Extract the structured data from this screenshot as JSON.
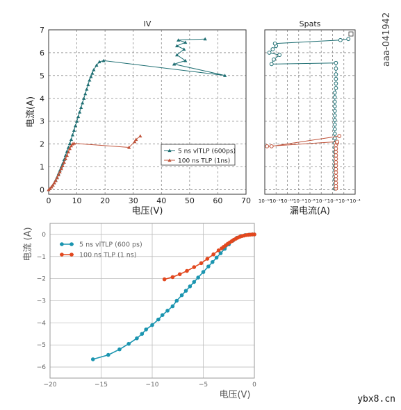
{
  "image_id_text": "aaa-041942",
  "watermark": "ybx8.cn",
  "colors": {
    "teal": "#1f6f73",
    "orange": "#c0533a",
    "teal2": "#1b95b0",
    "orange2": "#e2481f",
    "grid": "#9a9a9a"
  },
  "chart_data": [
    {
      "type": "line",
      "title": "IV",
      "xlabel": "电压(V)",
      "ylabel": "电流(A)",
      "xlim": [
        0,
        70
      ],
      "ylim": [
        -0.2,
        7
      ],
      "xticks": [
        0,
        10,
        20,
        30,
        40,
        50,
        60,
        70
      ],
      "yticks": [
        0,
        1,
        2,
        3,
        4,
        5,
        6,
        7
      ],
      "grid": true,
      "legend": "bottom-right",
      "series": [
        {
          "name": "5 ns vlTLP (600ps)",
          "color": "#1f6f73",
          "marker": "triangle",
          "x": [
            0,
            0.5,
            1,
            1.5,
            2,
            2.5,
            3,
            3.5,
            4,
            4.5,
            5,
            5.5,
            6,
            6.5,
            7,
            7.5,
            8,
            8.5,
            9,
            9.5,
            10,
            10.5,
            11,
            11.5,
            12,
            12.5,
            13,
            13.5,
            14,
            14.5,
            15,
            15.5,
            16,
            17,
            18,
            19.5,
            62.5,
            44.5,
            48.5,
            45.5,
            48.0,
            45.5,
            48.5,
            46.0,
            55.5
          ],
          "y": [
            0,
            0.05,
            0.12,
            0.2,
            0.3,
            0.42,
            0.55,
            0.7,
            0.85,
            1.0,
            1.15,
            1.32,
            1.5,
            1.68,
            1.85,
            2.02,
            2.2,
            2.4,
            2.6,
            2.8,
            3.0,
            3.2,
            3.4,
            3.6,
            3.8,
            4.0,
            4.2,
            4.4,
            4.6,
            4.8,
            4.95,
            5.1,
            5.25,
            5.45,
            5.6,
            5.65,
            5.0,
            5.5,
            5.65,
            5.9,
            6.15,
            6.3,
            6.45,
            6.55,
            6.6
          ]
        },
        {
          "name": "100 ns TLP (1ns)",
          "color": "#c0533a",
          "marker": "triangle",
          "x": [
            0,
            0.5,
            1,
            1.5,
            2,
            2.5,
            3,
            3.5,
            4,
            4.5,
            5,
            5.5,
            6,
            6.5,
            7,
            7.5,
            8,
            8.5,
            9,
            28.5,
            30.5,
            31,
            32.5
          ],
          "y": [
            0,
            0.05,
            0.12,
            0.2,
            0.3,
            0.4,
            0.52,
            0.65,
            0.78,
            0.92,
            1.05,
            1.2,
            1.35,
            1.5,
            1.65,
            1.8,
            1.92,
            2.0,
            2.03,
            1.85,
            2.1,
            2.2,
            2.35
          ]
        }
      ]
    },
    {
      "type": "scatter",
      "title": "Spats",
      "xlabel": "漏电流(A)",
      "xscale": "log",
      "xlim": [
        -12,
        -4
      ],
      "xticks": [
        "10⁻¹²",
        "10⁻¹¹",
        "10⁻¹⁰",
        "10⁻⁹",
        "10⁻⁸",
        "10⁻⁷",
        "10⁻⁶",
        "10⁻⁵",
        "10⁻⁴"
      ],
      "ylim": [
        -0.2,
        7
      ],
      "grid": true,
      "series": [
        {
          "name": "5 ns vlTLP (600ps)",
          "color": "#1f6f73",
          "marker": "circle",
          "x": [
            -5.8,
            -5.8,
            -5.8,
            -5.8,
            -5.8,
            -5.8,
            -5.8,
            -5.8,
            -5.8,
            -5.8,
            -5.8,
            -5.8,
            -5.8,
            -5.8,
            -5.8,
            -5.8,
            -5.8,
            -5.8,
            -5.8,
            -5.8,
            -5.8,
            -5.8,
            -5.7,
            -5.7,
            -5.7,
            -5.7,
            -5.7,
            -5.7,
            -11.4,
            -11.2,
            -10.7,
            -11.6,
            -11.3,
            -11.0,
            -11.1,
            -5.3,
            -4.6
          ],
          "y": [
            0.05,
            0.25,
            0.45,
            0.65,
            0.85,
            1.05,
            1.25,
            1.45,
            1.65,
            1.85,
            2.05,
            2.25,
            2.45,
            2.65,
            2.85,
            3.05,
            3.25,
            3.45,
            3.65,
            3.85,
            4.05,
            4.25,
            4.45,
            4.65,
            4.85,
            5.05,
            5.3,
            5.55,
            5.5,
            5.7,
            5.9,
            6.0,
            6.15,
            6.3,
            6.4,
            6.55,
            6.6
          ]
        },
        {
          "name": "100 ns TLP (1ns)",
          "color": "#c0533a",
          "marker": "circle",
          "x": [
            -5.7,
            -5.7,
            -5.7,
            -5.7,
            -5.7,
            -5.7,
            -5.7,
            -5.7,
            -5.7,
            -5.7,
            -5.7,
            -5.7,
            -5.7,
            -5.7,
            -5.6,
            -5.6,
            -11.8,
            -11.4,
            -5.4
          ],
          "y": [
            0.05,
            0.15,
            0.3,
            0.45,
            0.6,
            0.75,
            0.9,
            1.05,
            1.2,
            1.35,
            1.5,
            1.65,
            1.8,
            1.95,
            2.05,
            2.1,
            1.9,
            1.9,
            2.35
          ]
        }
      ]
    },
    {
      "type": "line",
      "title": "",
      "xlabel": "电压(V)",
      "ylabel": "电流 (A)",
      "xlim": [
        -20,
        0
      ],
      "ylim": [
        -6.5,
        0.5
      ],
      "xticks": [
        -20,
        -15,
        -10,
        -5,
        0
      ],
      "yticks": [
        -6,
        -5,
        -4,
        -3,
        -2,
        -1,
        0
      ],
      "grid": true,
      "legend": "top-left",
      "series": [
        {
          "name": "5 ns vlTLP (600 ps)",
          "color": "#1b95b0",
          "marker": "circle",
          "x": [
            -15.8,
            -14.3,
            -13.2,
            -12.3,
            -11.5,
            -11.0,
            -10.6,
            -10.0,
            -9.4,
            -9.0,
            -8.5,
            -8.0,
            -7.6,
            -7.1,
            -6.7,
            -6.3,
            -5.9,
            -5.5,
            -5.0,
            -4.5,
            -4.1,
            -3.7,
            -3.3,
            -2.9,
            -2.5,
            -2.1,
            -1.7,
            -1.3,
            -0.9,
            -0.5,
            -0.2,
            0
          ],
          "y": [
            -5.65,
            -5.45,
            -5.2,
            -4.95,
            -4.7,
            -4.5,
            -4.3,
            -4.1,
            -3.85,
            -3.65,
            -3.45,
            -3.25,
            -3.0,
            -2.75,
            -2.55,
            -2.35,
            -2.15,
            -1.95,
            -1.7,
            -1.45,
            -1.25,
            -1.05,
            -0.85,
            -0.65,
            -0.45,
            -0.28,
            -0.15,
            -0.07,
            -0.03,
            -0.01,
            0,
            0
          ]
        },
        {
          "name": "100 ns TLP (1 ns)",
          "color": "#e2481f",
          "marker": "circle",
          "x": [
            -8.8,
            -8.0,
            -7.3,
            -6.6,
            -5.9,
            -5.2,
            -4.6,
            -4.0,
            -3.5,
            -3.2,
            -3.0,
            -2.8,
            -2.6,
            -2.4,
            -2.2,
            -2.0,
            -1.8,
            -1.6,
            -1.4,
            -1.2,
            -1.0,
            -0.8,
            -0.6,
            -0.4,
            -0.2,
            0
          ],
          "y": [
            -2.03,
            -1.93,
            -1.8,
            -1.65,
            -1.48,
            -1.3,
            -1.1,
            -0.9,
            -0.72,
            -0.63,
            -0.56,
            -0.49,
            -0.42,
            -0.36,
            -0.3,
            -0.24,
            -0.19,
            -0.14,
            -0.1,
            -0.07,
            -0.05,
            -0.03,
            -0.02,
            -0.01,
            0,
            0
          ]
        }
      ]
    }
  ]
}
